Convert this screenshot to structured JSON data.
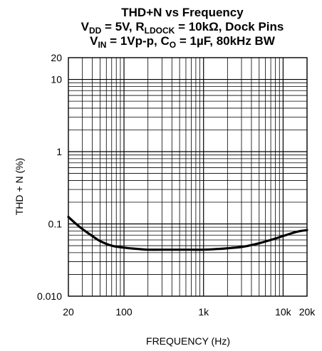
{
  "chart_data": {
    "type": "line",
    "title": {
      "line1": "THD+N vs Frequency",
      "line2": {
        "a": "V",
        "a_sub": "DD",
        "b": " = 5V, R",
        "b_sub": "LDOCK",
        "c": " = 10kΩ, Dock Pins"
      },
      "line3": {
        "a": "V",
        "a_sub": "IN",
        "b": " = 1Vp-p, C",
        "b_sub": "O",
        "c": " = 1µF, 80kHz BW"
      }
    },
    "xlabel": "FREQUENCY (Hz)",
    "ylabel": "THD + N (%)",
    "x_scale": "log",
    "y_scale": "log",
    "xlim": [
      20,
      20000
    ],
    "ylim": [
      0.01,
      20
    ],
    "grid": true,
    "legend": "none",
    "x_ticks": [
      {
        "value": 20,
        "label": "20"
      },
      {
        "value": 100,
        "label": "100"
      },
      {
        "value": 1000,
        "label": "1k"
      },
      {
        "value": 10000,
        "label": "10k"
      },
      {
        "value": 20000,
        "label": "20k"
      }
    ],
    "y_ticks": [
      {
        "value": 20,
        "label": "20"
      },
      {
        "value": 10,
        "label": "10"
      },
      {
        "value": 1,
        "label": "1"
      },
      {
        "value": 0.1,
        "label": "0.1"
      },
      {
        "value": 0.01,
        "label": "0.010"
      }
    ],
    "series": [
      {
        "color": "#000000",
        "x": [
          20,
          25,
          30,
          40,
          50,
          70,
          100,
          150,
          200,
          300,
          500,
          700,
          1000,
          1500,
          2000,
          3000,
          4000,
          5000,
          7000,
          10000,
          15000,
          20000
        ],
        "y": [
          0.125,
          0.1,
          0.085,
          0.068,
          0.058,
          0.05,
          0.047,
          0.045,
          0.044,
          0.044,
          0.044,
          0.044,
          0.044,
          0.045,
          0.046,
          0.048,
          0.051,
          0.054,
          0.06,
          0.068,
          0.078,
          0.082
        ]
      }
    ]
  }
}
